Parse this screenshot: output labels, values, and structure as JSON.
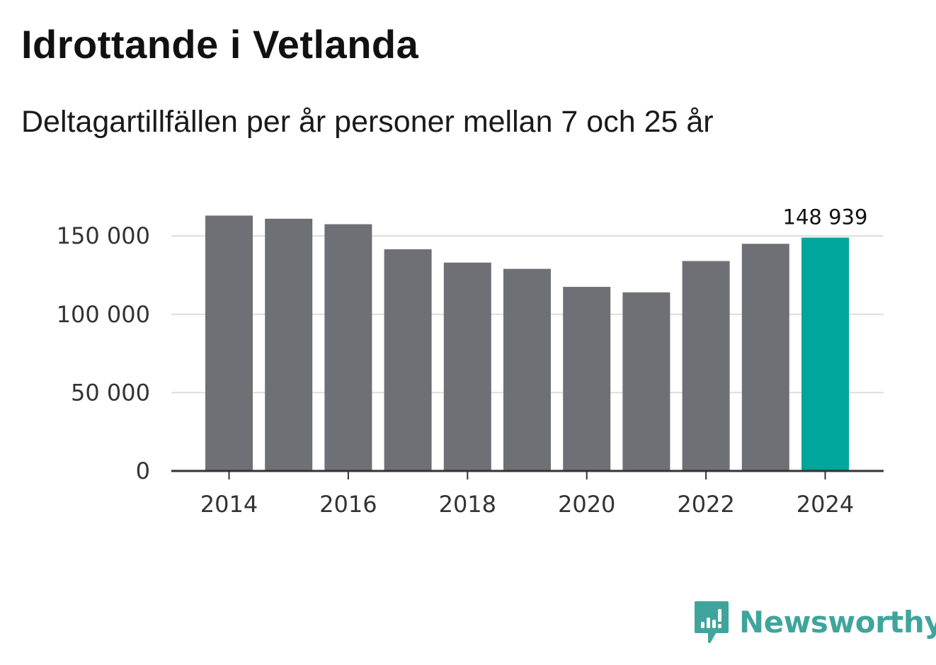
{
  "title": "Idrottande i Vetlanda",
  "subtitle": "Deltagartillfällen per år personer mellan 7 och 25 år",
  "brand": {
    "name": "Newsworthy",
    "icon": "newsworthy-logo-icon"
  },
  "colors": {
    "bar": "#6f6f76",
    "highlight": "#00a59b",
    "grid": "#dddddd",
    "axis": "#333333"
  },
  "chart_data": {
    "type": "bar",
    "title": "Idrottande i Vetlanda",
    "subtitle": "Deltagartillfällen per år personer mellan 7 och 25 år",
    "xlabel": "",
    "ylabel": "",
    "categories": [
      "2014",
      "2015",
      "2016",
      "2017",
      "2018",
      "2019",
      "2020",
      "2021",
      "2022",
      "2023",
      "2024"
    ],
    "values": [
      163000,
      161000,
      157500,
      141500,
      133000,
      129000,
      117500,
      114000,
      134000,
      145000,
      148939
    ],
    "highlight_index": 10,
    "highlight_label": "148 939",
    "ylim": [
      0,
      165000
    ],
    "yticks": [
      0,
      50000,
      100000,
      150000
    ],
    "ytick_labels": [
      "0",
      "50 000",
      "100 000",
      "150 000"
    ],
    "xtick_labels": [
      "2014",
      "2016",
      "2018",
      "2020",
      "2022",
      "2024"
    ],
    "grid": true,
    "legend": "none"
  }
}
